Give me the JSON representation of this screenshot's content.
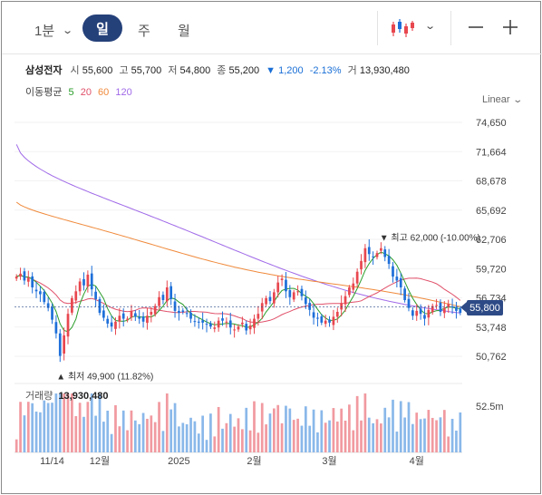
{
  "toolbar": {
    "timeframes": {
      "minute": "1분",
      "day": "일",
      "week": "주",
      "month": "월"
    },
    "chart_type_icon": "candlestick-icon",
    "zoom_out_icon": "minus-icon",
    "zoom_in_icon": "plus-icon"
  },
  "quote": {
    "name": "삼성전자",
    "open_label": "시",
    "open": "55,600",
    "high_label": "고",
    "high": "55,700",
    "low_label": "저",
    "low": "54,800",
    "close_label": "종",
    "close": "55,200",
    "change_arrow": "▼",
    "change": "1,200",
    "change_pct": "-2.13%",
    "volume_label": "거",
    "volume": "13,930,480"
  },
  "moving_averages": {
    "label": "이동평균",
    "periods": [
      {
        "period": "5",
        "color": "#2a9d2a"
      },
      {
        "period": "20",
        "color": "#e0506a"
      },
      {
        "period": "60",
        "color": "#f08a3c"
      },
      {
        "period": "120",
        "color": "#a06ae8"
      }
    ]
  },
  "scale": {
    "label": "Linear"
  },
  "current_price": "55,800",
  "volume_panel": {
    "label": "거래량",
    "value": "13,930,480"
  },
  "colors": {
    "up": "#e8474f",
    "down": "#1e6fd9",
    "vol_up": "#f19aa0",
    "vol_down": "#8ab8ea",
    "accent": "#25417a"
  },
  "chart_data": {
    "type": "candlestick",
    "y_ticks": [
      "74,650",
      "71,664",
      "68,678",
      "65,692",
      "62,706",
      "59,720",
      "56,734",
      "53,748",
      "50,762"
    ],
    "y_range": [
      49000,
      75500
    ],
    "volume_ticks": [
      "52.5m"
    ],
    "x_labels": [
      {
        "label": "11/14",
        "index": 9
      },
      {
        "label": "12월",
        "index": 21
      },
      {
        "label": "2025",
        "index": 41
      },
      {
        "label": "2월",
        "index": 60
      },
      {
        "label": "3월",
        "index": 79
      },
      {
        "label": "4월",
        "index": 101
      }
    ],
    "annotations": {
      "high": {
        "text": "최고 62,000 (-10.00%)",
        "value": 62000,
        "index": 93,
        "marker": "▼"
      },
      "low": {
        "text": "최저 49,900 (11.82%)",
        "value": 49900,
        "index": 11,
        "marker": "▲"
      }
    },
    "closes": [
      58900,
      59200,
      58500,
      58800,
      57800,
      57400,
      57100,
      56300,
      55700,
      54500,
      53100,
      50800,
      52900,
      55100,
      56700,
      57400,
      58400,
      58000,
      59100,
      57600,
      56600,
      55200,
      54700,
      54100,
      53800,
      54300,
      54900,
      54600,
      54600,
      55400,
      54800,
      54600,
      54300,
      54900,
      55300,
      55900,
      56800,
      56500,
      57800,
      56600,
      55400,
      55200,
      55300,
      55100,
      54600,
      54300,
      54200,
      54200,
      54000,
      53800,
      53700,
      54400,
      54400,
      54300,
      53700,
      53500,
      53800,
      54200,
      53400,
      53900,
      54600,
      55100,
      56200,
      56700,
      56400,
      57300,
      58300,
      58700,
      57400,
      56800,
      57300,
      57400,
      56900,
      56100,
      55500,
      54700,
      54600,
      54200,
      54400,
      54200,
      54800,
      55300,
      56200,
      56900,
      57800,
      58200,
      59400,
      60500,
      61800,
      61200,
      60900,
      61300,
      61800,
      60900,
      60200,
      58900,
      58500,
      57800,
      56500,
      55700,
      54900,
      55400,
      55100,
      54600,
      55500,
      55900,
      56000,
      55300,
      55700,
      56100,
      55800,
      55400,
      55200
    ]
  }
}
